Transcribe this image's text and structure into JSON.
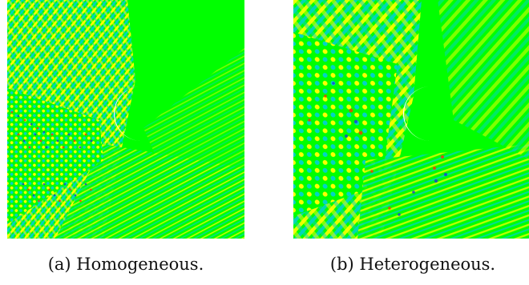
{
  "figure": {
    "panels": [
      {
        "id": "a",
        "caption": "(a) Homogeneous.",
        "pattern": "fine-grained-wave-field",
        "background_color": "#00ff00",
        "highlight_color": "#ffff00",
        "shadow_color": "#00d4c8",
        "peak_color": "#ff3300",
        "trough_color": "#1b3bd9",
        "obstacle_color": "#ffffff"
      },
      {
        "id": "b",
        "caption": "(b) Heterogeneous.",
        "pattern": "coarse-grained-wave-field",
        "background_color": "#00ff00",
        "highlight_color": "#ffff00",
        "shadow_color": "#00d4c8",
        "peak_color": "#ff3300",
        "trough_color": "#1b3bd9",
        "obstacle_color": "#ffffff"
      }
    ]
  }
}
